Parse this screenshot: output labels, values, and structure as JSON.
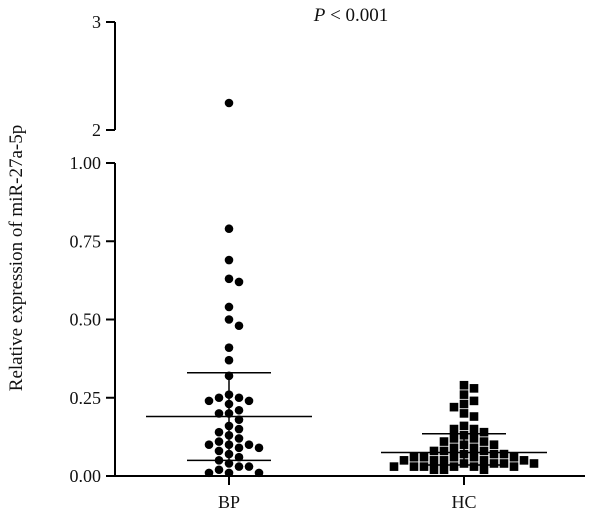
{
  "chart_data": {
    "type": "scatter",
    "title": "",
    "xlabel": "",
    "ylabel": "Relative expression of miR-27a-5p",
    "annotation": {
      "p_symbol": "P",
      "p_rest": " < 0.001"
    },
    "categories": [
      "BP",
      "HC"
    ],
    "y_axis_lower": {
      "range": [
        0,
        1.0
      ],
      "ticks": [
        "0.00",
        "0.25",
        "0.50",
        "0.75",
        "1.00"
      ]
    },
    "y_axis_upper": {
      "range": [
        2,
        3
      ],
      "ticks": [
        "2",
        "3"
      ]
    },
    "grid": false,
    "legend": "none",
    "series": [
      {
        "category": "BP",
        "marker": "circle",
        "color": "#000000",
        "mean": 0.19,
        "error_upper": 0.33,
        "error_lower": 0.05,
        "values": [
          2.25,
          0.79,
          0.69,
          0.63,
          0.62,
          0.54,
          0.5,
          0.48,
          0.41,
          0.37,
          0.32,
          0.26,
          0.25,
          0.25,
          0.24,
          0.24,
          0.23,
          0.21,
          0.2,
          0.2,
          0.18,
          0.16,
          0.15,
          0.14,
          0.13,
          0.12,
          0.11,
          0.1,
          0.1,
          0.1,
          0.09,
          0.09,
          0.08,
          0.07,
          0.06,
          0.05,
          0.04,
          0.03,
          0.03,
          0.02,
          0.01,
          0.01,
          0.01
        ]
      },
      {
        "category": "HC",
        "marker": "square",
        "color": "#000000",
        "mean": 0.075,
        "error_upper": 0.135,
        "error_lower": 0.035,
        "values": [
          0.29,
          0.28,
          0.26,
          0.24,
          0.23,
          0.22,
          0.2,
          0.19,
          0.16,
          0.15,
          0.15,
          0.14,
          0.13,
          0.12,
          0.12,
          0.11,
          0.11,
          0.1,
          0.1,
          0.09,
          0.09,
          0.08,
          0.08,
          0.08,
          0.07,
          0.07,
          0.07,
          0.06,
          0.06,
          0.06,
          0.06,
          0.06,
          0.05,
          0.05,
          0.05,
          0.05,
          0.05,
          0.04,
          0.04,
          0.04,
          0.04,
          0.03,
          0.03,
          0.03,
          0.03,
          0.03,
          0.03,
          0.02,
          0.02,
          0.02
        ]
      }
    ]
  }
}
